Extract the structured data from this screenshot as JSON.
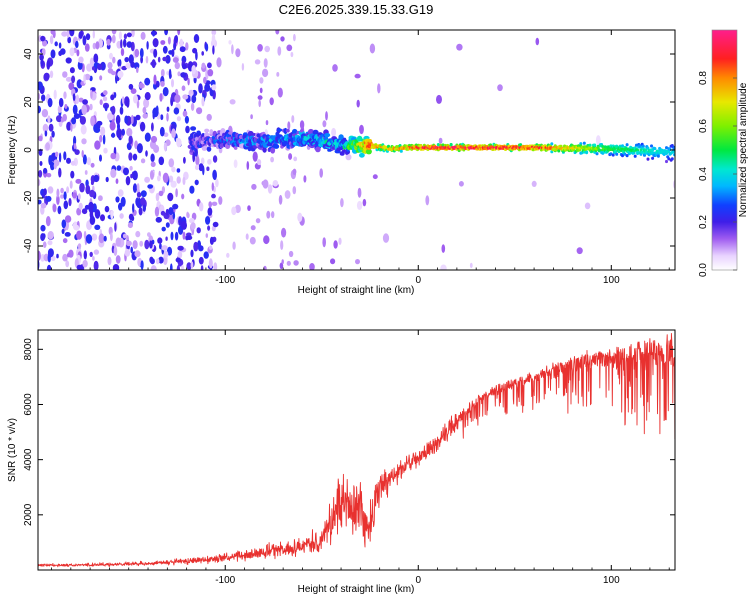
{
  "figure": {
    "title": "C2E6.2025.339.15.33.G19"
  },
  "chart_data": [
    {
      "type": "heatmap",
      "xlabel": "Height of straight line (km)",
      "ylabel": "Frequency (Hz)",
      "xlim": [
        -197,
        133
      ],
      "ylim": [
        -50,
        50
      ],
      "xticks": [
        -100,
        0,
        100
      ],
      "yticks": [
        -40,
        -20,
        0,
        20,
        40
      ],
      "colorbar": {
        "label": "Normalized spectral amplitude",
        "range": [
          0,
          1
        ],
        "ticks": [
          0.0,
          0.2,
          0.4,
          0.6,
          0.8
        ]
      },
      "description_series": [
        {
          "name": "ridge_center_hz",
          "x": [
            -115,
            -100,
            -80,
            -60,
            -40,
            -25,
            -15,
            -5,
            0,
            20,
            60,
            100,
            133
          ],
          "values": [
            4,
            4,
            3.5,
            5,
            2,
            2,
            0.5,
            1,
            1,
            1,
            1,
            0.5,
            -1
          ]
        },
        {
          "name": "ridge_peak_amplitude",
          "x": [
            -115,
            -100,
            -80,
            -60,
            -40,
            -25,
            -15,
            -5,
            0,
            20,
            60,
            100,
            133
          ],
          "values": [
            0.2,
            0.25,
            0.3,
            0.35,
            0.35,
            0.9,
            0.8,
            0.85,
            0.95,
            0.98,
            0.95,
            0.55,
            0.4
          ]
        }
      ]
    },
    {
      "type": "line",
      "xlabel": "Height of straight line (km)",
      "ylabel": "SNR (10 * v/v)",
      "xlim": [
        -197,
        133
      ],
      "ylim": [
        0,
        8700
      ],
      "xticks": [
        -100,
        0,
        100
      ],
      "yticks": [
        2000,
        4000,
        6000,
        8000
      ],
      "color": "#e8312f",
      "series": [
        {
          "name": "SNR",
          "x": [
            -197,
            -180,
            -160,
            -140,
            -120,
            -100,
            -90,
            -80,
            -70,
            -60,
            -50,
            -45,
            -40,
            -35,
            -30,
            -25,
            -22,
            -20,
            -15,
            -10,
            -5,
            0,
            10,
            20,
            30,
            40,
            50,
            60,
            70,
            80,
            90,
            100,
            110,
            120,
            133
          ],
          "mean": [
            180,
            180,
            200,
            230,
            320,
            450,
            520,
            650,
            750,
            900,
            1100,
            1800,
            2400,
            2400,
            2000,
            1500,
            2600,
            2900,
            3300,
            3600,
            3900,
            4050,
            4600,
            5400,
            6050,
            6450,
            6700,
            6900,
            7150,
            7300,
            7500,
            7600,
            7650,
            7700,
            7700
          ],
          "spread": [
            80,
            80,
            90,
            110,
            160,
            220,
            280,
            350,
            400,
            450,
            700,
            1300,
            1600,
            1700,
            1500,
            1200,
            1100,
            1000,
            700,
            500,
            500,
            400,
            450,
            550,
            500,
            500,
            550,
            600,
            700,
            800,
            900,
            1000,
            1200,
            1400,
            1600
          ]
        }
      ]
    }
  ]
}
